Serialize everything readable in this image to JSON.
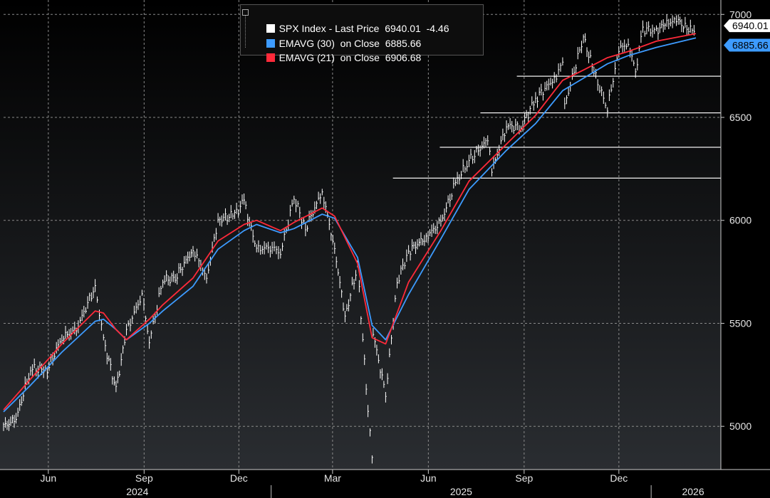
{
  "chart_data": {
    "type": "line",
    "title": "",
    "xlabel": "",
    "ylabel": "",
    "ylim": [
      4790,
      7070
    ],
    "y_ticks": [
      5000,
      5500,
      6000,
      6500,
      7000
    ],
    "y_tick_labels": [
      "5000",
      "5500",
      "6000",
      "6500",
      "7000"
    ],
    "x_month_ticks": [
      {
        "date": "2024-06-01",
        "label": "Jun"
      },
      {
        "date": "2024-09-01",
        "label": "Sep"
      },
      {
        "date": "2024-12-01",
        "label": "Dec"
      },
      {
        "date": "2025-03-01",
        "label": "Mar"
      },
      {
        "date": "2025-06-01",
        "label": "Jun"
      },
      {
        "date": "2025-09-01",
        "label": "Sep"
      },
      {
        "date": "2025-12-01",
        "label": "Dec"
      }
    ],
    "x_year_labels": [
      {
        "label": "2024"
      },
      {
        "label": "2025"
      },
      {
        "label": "2026"
      }
    ],
    "x_range": [
      "2024-04-19",
      "2026-02-13"
    ],
    "grid": true,
    "legend": [
      {
        "name": "SPX Index - Last Price",
        "value": "6940.01",
        "change": "-4.46",
        "color": "#ffffff"
      },
      {
        "name": "EMAVG (30)  on Close",
        "value": "6885.66",
        "color": "#3d9bff"
      },
      {
        "name": "EMAVG (21)  on Close",
        "value": "6906.68",
        "color": "#ff2a3a"
      }
    ],
    "last_value_badges": [
      {
        "value": "6940.01",
        "bg": "#ffffff",
        "fg": "#000000"
      },
      {
        "value": "6885.66",
        "bg": "#3d9bff",
        "fg": "#000000"
      }
    ],
    "horizontal_levels": [
      {
        "y": 6700,
        "from": "2025-08-25"
      },
      {
        "y": 6522,
        "from": "2025-07-21"
      },
      {
        "y": 6355,
        "from": "2025-06-12"
      },
      {
        "y": 6205,
        "from": "2025-04-28"
      }
    ],
    "price_series": {
      "name": "SPX Index",
      "color": "#ffffff",
      "x": [
        "2024-04-19",
        "2024-05-01",
        "2024-05-15",
        "2024-05-31",
        "2024-06-14",
        "2024-06-28",
        "2024-07-16",
        "2024-07-24",
        "2024-08-05",
        "2024-08-15",
        "2024-08-30",
        "2024-09-06",
        "2024-09-19",
        "2024-10-01",
        "2024-10-18",
        "2024-10-31",
        "2024-11-11",
        "2024-11-27",
        "2024-12-06",
        "2024-12-18",
        "2025-01-02",
        "2025-01-10",
        "2025-01-23",
        "2025-02-03",
        "2025-02-19",
        "2025-03-03",
        "2025-03-13",
        "2025-03-25",
        "2025-04-04",
        "2025-04-08",
        "2025-04-09",
        "2025-04-21",
        "2025-05-02",
        "2025-05-13",
        "2025-05-30",
        "2025-06-13",
        "2025-06-27",
        "2025-07-10",
        "2025-07-28",
        "2025-08-01",
        "2025-08-15",
        "2025-08-29",
        "2025-09-12",
        "2025-09-30",
        "2025-10-08",
        "2025-10-10",
        "2025-10-28",
        "2025-11-07",
        "2025-11-20",
        "2025-12-01",
        "2025-12-10",
        "2025-12-17",
        "2025-12-24",
        "2026-01-06",
        "2026-01-16",
        "2026-01-27",
        "2026-02-06",
        "2026-02-13"
      ],
      "values": [
        5000,
        5035,
        5280,
        5275,
        5430,
        5470,
        5680,
        5420,
        5180,
        5460,
        5640,
        5410,
        5710,
        5720,
        5860,
        5720,
        6000,
        6030,
        6090,
        5860,
        5870,
        5840,
        6110,
        5960,
        6140,
        5860,
        5530,
        5780,
        5070,
        4850,
        5450,
        5150,
        5700,
        5850,
        5920,
        5990,
        6180,
        6290,
        6390,
        6240,
        6460,
        6450,
        6590,
        6690,
        6760,
        6560,
        6890,
        6720,
        6540,
        6830,
        6860,
        6720,
        6930,
        6920,
        6960,
        6970,
        6920,
        6940
      ]
    },
    "series": [
      {
        "name": "EMAVG (30)",
        "color": "#3d9bff",
        "x": [
          "2024-04-19",
          "2024-05-15",
          "2024-06-14",
          "2024-07-16",
          "2024-07-24",
          "2024-08-05",
          "2024-08-15",
          "2024-09-06",
          "2024-09-19",
          "2024-10-18",
          "2024-11-11",
          "2024-12-06",
          "2024-12-18",
          "2025-01-10",
          "2025-01-23",
          "2025-02-19",
          "2025-03-03",
          "2025-03-25",
          "2025-04-08",
          "2025-04-21",
          "2025-05-13",
          "2025-06-13",
          "2025-07-10",
          "2025-08-15",
          "2025-09-12",
          "2025-10-08",
          "2025-10-28",
          "2025-11-20",
          "2025-12-10",
          "2026-01-06",
          "2026-02-13"
        ],
        "values": [
          5070,
          5200,
          5360,
          5510,
          5520,
          5470,
          5420,
          5500,
          5560,
          5680,
          5860,
          5950,
          5980,
          5940,
          5960,
          6030,
          6010,
          5820,
          5490,
          5420,
          5640,
          5910,
          6150,
          6340,
          6470,
          6630,
          6690,
          6760,
          6800,
          6840,
          6886
        ]
      },
      {
        "name": "EMAVG (21)",
        "color": "#ff2a3a",
        "x": [
          "2024-04-19",
          "2024-05-15",
          "2024-06-14",
          "2024-07-16",
          "2024-07-24",
          "2024-08-05",
          "2024-08-15",
          "2024-09-06",
          "2024-09-19",
          "2024-10-18",
          "2024-11-11",
          "2024-12-06",
          "2024-12-18",
          "2025-01-10",
          "2025-01-23",
          "2025-02-19",
          "2025-03-03",
          "2025-03-25",
          "2025-04-08",
          "2025-04-21",
          "2025-05-13",
          "2025-06-13",
          "2025-07-10",
          "2025-08-15",
          "2025-09-12",
          "2025-10-08",
          "2025-10-28",
          "2025-11-20",
          "2025-12-10",
          "2026-01-06",
          "2026-02-13"
        ],
        "values": [
          5080,
          5230,
          5400,
          5560,
          5550,
          5470,
          5420,
          5520,
          5590,
          5720,
          5900,
          5980,
          6000,
          5950,
          5990,
          6060,
          6020,
          5790,
          5430,
          5400,
          5700,
          5950,
          6190,
          6370,
          6510,
          6680,
          6730,
          6790,
          6820,
          6870,
          6907
        ]
      }
    ]
  }
}
